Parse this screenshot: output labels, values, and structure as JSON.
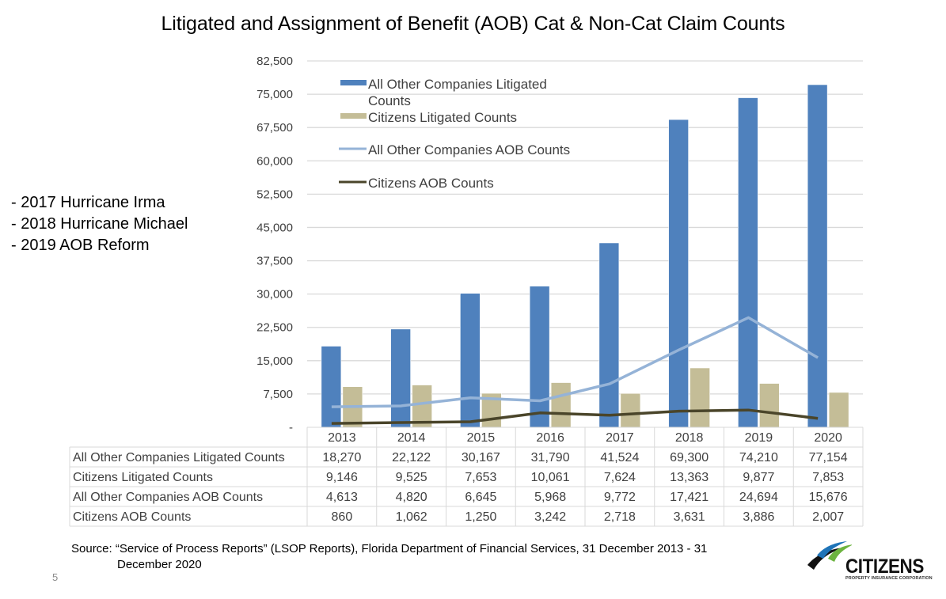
{
  "page": {
    "title": "Litigated and Assignment of Benefit (AOB) Cat & Non-Cat Claim Counts",
    "notes": [
      "- 2017 Hurricane Irma",
      "- 2018 Hurricane Michael",
      "- 2019 AOB Reform"
    ],
    "source_line1": "Source: “Service of Process Reports” (LSOP Reports), Florida Department of Financial Services, 31 December 2013 - 31",
    "source_line2": "December 2020",
    "page_number": "5",
    "logo_name": "CITIZENS",
    "logo_subtitle": "PROPERTY INSURANCE CORPORATION"
  },
  "chart_data": {
    "type": "bar",
    "title": "Litigated and Assignment of Benefit (AOB) Cat & Non-Cat Claim Counts",
    "xlabel": "",
    "ylabel": "",
    "categories": [
      "2013",
      "2014",
      "2015",
      "2016",
      "2017",
      "2018",
      "2019",
      "2020"
    ],
    "ylim": [
      0,
      82500
    ],
    "ytick_values": [
      0,
      7500,
      15000,
      22500,
      30000,
      37500,
      45000,
      52500,
      60000,
      67500,
      75000,
      82500
    ],
    "ytick_labels": [
      "-",
      "7,500",
      "15,000",
      "22,500",
      "30,000",
      "37,500",
      "45,000",
      "52,500",
      "60,000",
      "67,500",
      "75,000",
      "82,500"
    ],
    "grid": true,
    "legend_position": "top-left inside",
    "series": [
      {
        "name": "All Other Companies Litigated Counts",
        "legend_lines": [
          "All Other Companies Litigated",
          "Counts"
        ],
        "kind": "bar",
        "color": "#4f81bd",
        "values": [
          18270,
          22122,
          30167,
          31790,
          41524,
          69300,
          74210,
          77154
        ],
        "labels": [
          "18,270",
          "22,122",
          "30,167",
          "31,790",
          "41,524",
          "69,300",
          "74,210",
          "77,154"
        ]
      },
      {
        "name": "Citizens Litigated Counts",
        "legend_lines": [
          "Citizens Litigated Counts"
        ],
        "kind": "bar",
        "color": "#c4bd97",
        "values": [
          9146,
          9525,
          7653,
          10061,
          7624,
          13363,
          9877,
          7853
        ],
        "labels": [
          "9,146",
          "9,525",
          "7,653",
          "10,061",
          "7,624",
          "13,363",
          "9,877",
          "7,853"
        ]
      },
      {
        "name": "All Other Companies AOB Counts",
        "legend_lines": [
          "All Other Companies AOB Counts"
        ],
        "kind": "line",
        "color": "#95b3d7",
        "values": [
          4613,
          4820,
          6645,
          5968,
          9772,
          17421,
          24694,
          15676
        ],
        "labels": [
          "4,613",
          "4,820",
          "6,645",
          "5,968",
          "9,772",
          "17,421",
          "24,694",
          "15,676"
        ]
      },
      {
        "name": "Citizens AOB Counts",
        "legend_lines": [
          "Citizens AOB Counts"
        ],
        "kind": "line",
        "color": "#4a452a",
        "values": [
          860,
          1062,
          1250,
          3242,
          2718,
          3631,
          3886,
          2007
        ],
        "labels": [
          "860",
          "1,062",
          "1,250",
          "3,242",
          "2,718",
          "3,631",
          "3,886",
          "2,007"
        ]
      }
    ]
  }
}
